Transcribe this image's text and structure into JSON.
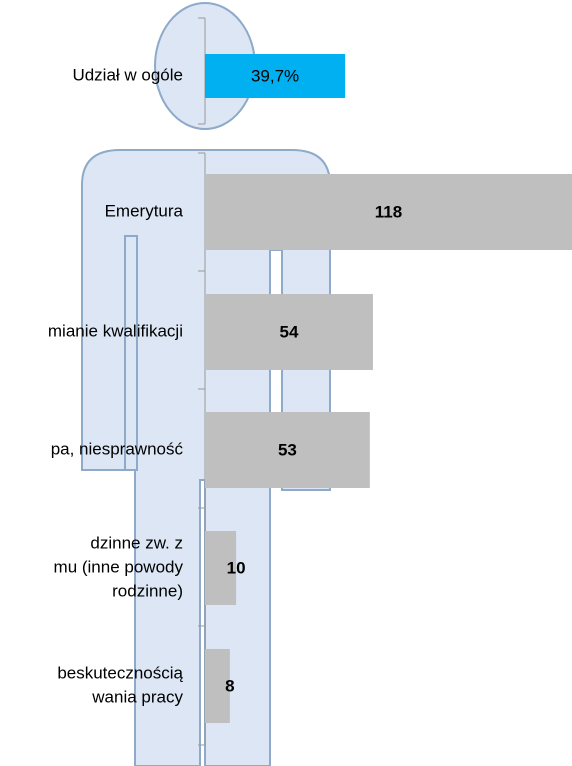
{
  "chart_data": {
    "type": "bar",
    "share": {
      "category": "Udział w ogóle",
      "value": 39.7,
      "value_label": "39,7%",
      "color": "#00b0f0"
    },
    "categories": [
      [
        "Emerytura"
      ],
      [
        "mianie kwalifikacji"
      ],
      [
        "pa, niesprawność"
      ],
      [
        "dzinne zw. z",
        "mu (inne powody",
        "rodzinne)"
      ],
      [
        "beskutecznością",
        "wania pracy"
      ]
    ],
    "values": [
      118,
      54,
      53,
      10,
      8
    ],
    "color": "#bfbfbf"
  }
}
